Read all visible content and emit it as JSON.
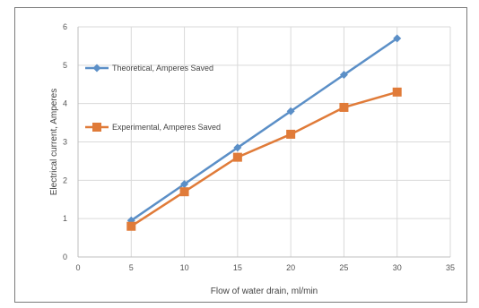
{
  "chart_data": {
    "type": "line",
    "title": "",
    "xlabel": "Flow of water drain, ml/min",
    "ylabel": "Electrical current, Amperes",
    "xlim": [
      0,
      35
    ],
    "ylim": [
      0,
      6
    ],
    "xticks": [
      0,
      5,
      10,
      15,
      20,
      25,
      30,
      35
    ],
    "yticks": [
      0,
      1,
      2,
      3,
      4,
      5,
      6
    ],
    "grid": true,
    "legend_position": "top-left",
    "x": [
      5,
      10,
      15,
      20,
      25,
      30
    ],
    "series": [
      {
        "name": "Theoretical, Amperes Saved",
        "values": [
          0.95,
          1.9,
          2.85,
          3.8,
          4.75,
          5.7
        ],
        "color": "#5b8fc7",
        "marker": "diamond"
      },
      {
        "name": "Experimental, Amperes Saved",
        "values": [
          0.8,
          1.7,
          2.6,
          3.2,
          3.9,
          4.3
        ],
        "color": "#e07b39",
        "marker": "square"
      }
    ]
  }
}
